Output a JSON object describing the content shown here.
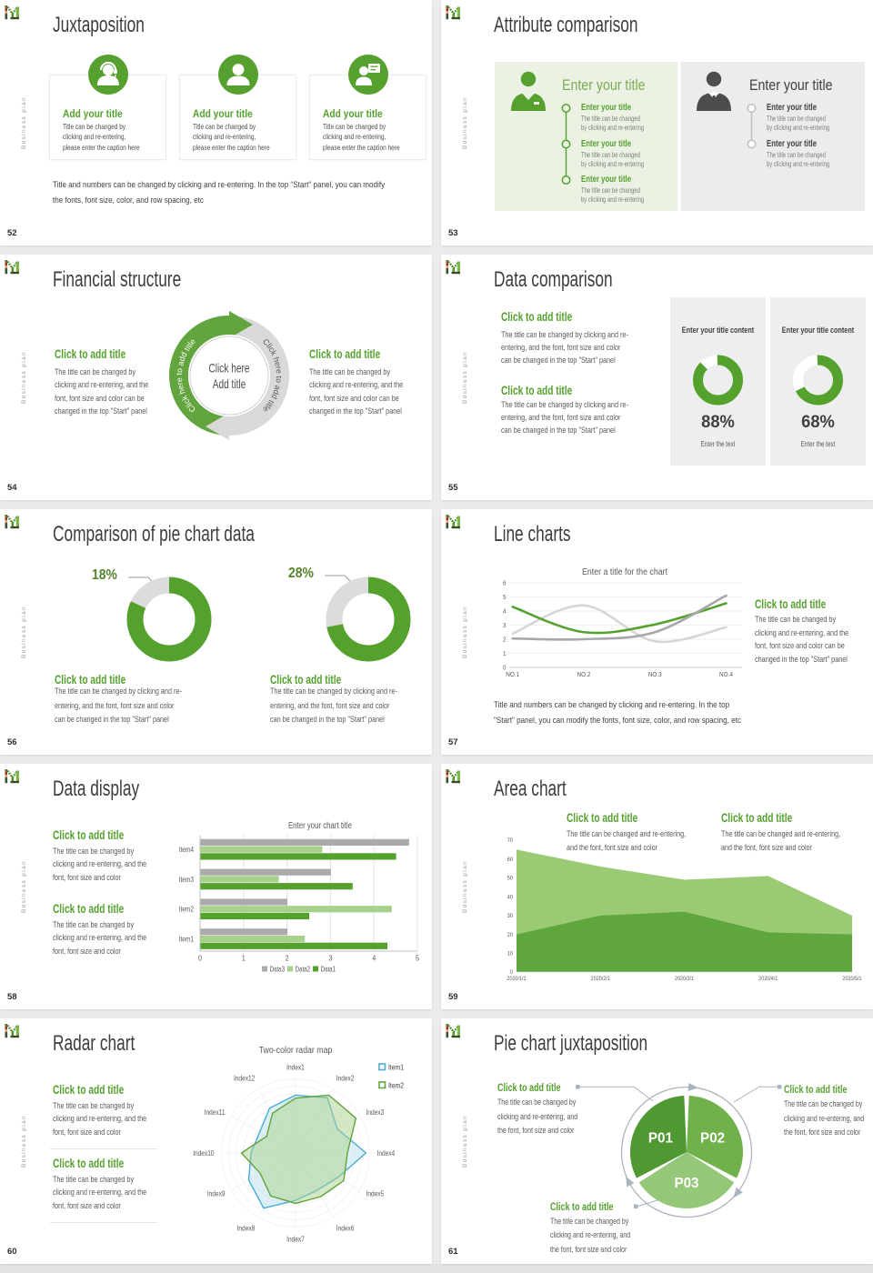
{
  "deck": {
    "vertical_label": "Business plan",
    "accent_green": "#55a02e",
    "logo_name": "brand-monogram"
  },
  "slides": {
    "s52": {
      "number": "52",
      "title": "Juxtaposition",
      "cards": [
        {
          "icon": "support-agent-icon",
          "heading": "Add your title",
          "body": [
            "Title can be changed by",
            "clicking and re-entering,",
            "please enter the caption here"
          ]
        },
        {
          "icon": "person-icon",
          "heading": "Add your title",
          "body": [
            "Title can be changed by",
            "clicking and re-entering,",
            "please enter the caption here"
          ]
        },
        {
          "icon": "presenter-icon",
          "heading": "Add your title",
          "body": [
            "Title can be changed by",
            "clicking and re-entering,",
            "please enter the caption here"
          ]
        }
      ],
      "caption": [
        "Title and numbers can be changed by clicking and re-entering. In the top \"Start\" panel, you can modify",
        "the fonts, font size, color, and row spacing, etc"
      ]
    },
    "s53": {
      "number": "53",
      "title": "Attribute comparison",
      "left_panel": {
        "icon": "green-person-icon",
        "big_title": "Enter your title",
        "items": [
          {
            "title": "Enter your title",
            "body": [
              "The title can be changed",
              "by clicking and re-entering"
            ]
          },
          {
            "title": "Enter your title",
            "body": [
              "The title can be changed",
              "by clicking and re-entering"
            ]
          },
          {
            "title": "Enter your title",
            "body": [
              "The title can be changed",
              "by clicking and re-entering"
            ]
          }
        ]
      },
      "right_panel": {
        "icon": "dark-person-icon",
        "big_title": "Enter your title",
        "items": [
          {
            "title": "Enter your title",
            "body": [
              "The title can be changed",
              "by clicking and re-entering"
            ]
          },
          {
            "title": "Enter your title",
            "body": [
              "The title can be changed",
              "by clicking and re-entering"
            ]
          }
        ]
      }
    },
    "s54": {
      "number": "54",
      "title": "Financial structure",
      "left_block": {
        "title": "Click to add title",
        "body": [
          "The title can be changed by",
          "clicking and re-entering, and the",
          "font, font size and color can be",
          "changed in the top \"Start\" panel"
        ]
      },
      "right_block": {
        "title": "Click to add title",
        "body": [
          "The title can be changed by",
          "clicking and re-entering, and the",
          "font, font size and color can be",
          "changed in the top \"Start\" panel"
        ]
      },
      "cycle": {
        "arc_label_left": "Click here to add title",
        "arc_label_right": "Click here to add title",
        "center_line1": "Click here",
        "center_line2": "Add title"
      }
    },
    "s55": {
      "number": "55",
      "title": "Data comparison",
      "blocks": [
        {
          "title": "Click to add title",
          "body": [
            "The title can be changed by clicking and re-",
            "entering, and the font, font size and color",
            "can be changed in the top \"Start\" panel"
          ]
        },
        {
          "title": "Click to add title",
          "body": [
            "The title can be changed by clicking and re-",
            "entering, and the font, font size and color",
            "can be changed in the top \"Start\" panel"
          ]
        }
      ]
    },
    "s56": {
      "number": "56",
      "title": "Comparison of pie chart data",
      "blocks": [
        {
          "title": "Click to add title",
          "body": [
            "The title can be changed by clicking and re-",
            "entering, and the font, font size and color",
            "can be changed in the top \"Start\" panel"
          ]
        },
        {
          "title": "Click to add title",
          "body": [
            "The title can be changed by clicking and re-",
            "entering, and the font, font size and color",
            "can be changed in the top \"Start\" panel"
          ]
        }
      ]
    },
    "s57": {
      "number": "57",
      "title": "Line charts",
      "right_block": {
        "title": "Click to add title",
        "body": [
          "The title can be changed by",
          "clicking and re-entering, and the",
          "font, font size and color can be",
          "changed in the top \"Start\" panel"
        ]
      },
      "caption": [
        "Title and numbers can be changed by clicking and re-entering. In the top",
        "\"Start\" panel, you can modify the fonts, font size, color, and row spacing, etc"
      ]
    },
    "s58": {
      "number": "58",
      "title": "Data display",
      "blocks": [
        {
          "title": "Click to add title",
          "body": [
            "The title can be changed by",
            "clicking and re-entering, and the",
            "font, font size and color"
          ]
        },
        {
          "title": "Click to add title",
          "body": [
            "The title can be changed by",
            "clicking and re-entering, and the",
            "font, font size and color"
          ]
        }
      ]
    },
    "s59": {
      "number": "59",
      "title": "Area chart",
      "blocks": [
        {
          "title": "Click to add title",
          "body": [
            "The title can be changed and re-entering,",
            "and the font, font size and color"
          ]
        },
        {
          "title": "Click to add title",
          "body": [
            "The title can be changed and re-entering,",
            "and the font, font size and color"
          ]
        }
      ]
    },
    "s60": {
      "number": "60",
      "title": "Radar chart",
      "blocks": [
        {
          "title": "Click to add title",
          "body": [
            "The title can be changed by",
            "clicking and re-entering, and the",
            "font, font size and color"
          ]
        },
        {
          "title": "Click to add title",
          "body": [
            "The title can be changed by",
            "clicking and re-entering, and the",
            "font, font size and color"
          ]
        }
      ]
    },
    "s61": {
      "number": "61",
      "title": "Pie chart juxtaposition",
      "blocks": [
        {
          "title": "Click to add title",
          "body": [
            "The title can be changed by",
            "clicking and re-entering, and",
            "the font, font size and color"
          ]
        },
        {
          "title": "Click to add title",
          "body": [
            "The title can be changed by",
            "clicking and re-entering, and",
            "the font, font size and color"
          ]
        },
        {
          "title": "Click to add title",
          "body": [
            "The title can be changed by",
            "clicking and re-entering, and",
            "the font, font size and color"
          ]
        }
      ]
    }
  },
  "chart_data": [
    {
      "slide": "55",
      "type": "donut",
      "items": [
        {
          "title": "Enter your title content",
          "percent": 88,
          "label": "88%",
          "caption": "Enter the text"
        },
        {
          "title": "Enter your title content",
          "percent": 68,
          "label": "68%",
          "caption": "Enter the text"
        }
      ],
      "value_color": "#55a12e",
      "track_color": "#ffffff"
    },
    {
      "slide": "56",
      "type": "donut",
      "items": [
        {
          "label": "18%",
          "gray_slice_percent": 18,
          "green_percent": 82
        },
        {
          "label": "28%",
          "gray_slice_percent": 28,
          "green_percent": 72
        }
      ],
      "value_color": "#55a12e",
      "track_color": "#dcdcdc"
    },
    {
      "slide": "57",
      "type": "line",
      "title": "Enter a title for the chart",
      "categories": [
        "NO.1",
        "NO.2",
        "NO.3",
        "NO.4"
      ],
      "ylim": [
        0,
        6
      ],
      "yticks": [
        0,
        1,
        2,
        3,
        4,
        5,
        6
      ],
      "grid": true,
      "series": [
        {
          "name": "series-light-gray",
          "color": "#d6d6d6",
          "values": [
            2.4,
            4.4,
            1.85,
            2.85
          ]
        },
        {
          "name": "series-green",
          "color": "#55a12e",
          "values": [
            4.3,
            2.5,
            3.05,
            4.55
          ]
        },
        {
          "name": "series-gray",
          "color": "#a8a8a8",
          "values": [
            2.05,
            2.0,
            2.5,
            5.1
          ]
        }
      ]
    },
    {
      "slide": "58",
      "type": "bar",
      "title": "Enter your chart title",
      "categories": [
        "Item1",
        "Item2",
        "Item3",
        "Item4"
      ],
      "xlim": [
        0,
        5
      ],
      "xticks": [
        0,
        1,
        2,
        3,
        4,
        5
      ],
      "grid": true,
      "legend_position": "bottom",
      "series": [
        {
          "name": "Data3",
          "color": "#ababab",
          "values": [
            2.0,
            2.0,
            3.0,
            4.8
          ]
        },
        {
          "name": "Data2",
          "color": "#a9d18e",
          "values": [
            2.4,
            4.4,
            1.8,
            2.8
          ]
        },
        {
          "name": "Data1",
          "color": "#55a12e",
          "values": [
            4.3,
            2.5,
            3.5,
            4.5
          ]
        }
      ]
    },
    {
      "slide": "59",
      "type": "area",
      "categories": [
        "2020/1/1",
        "2020/2/1",
        "2020/3/1",
        "2020/4/1",
        "2020/5/1"
      ],
      "ylim": [
        0,
        70
      ],
      "yticks": [
        0,
        10,
        20,
        30,
        40,
        50,
        60,
        70
      ],
      "series": [
        {
          "name": "area-light-green",
          "color": "#9bca75",
          "values": [
            65,
            56,
            49,
            51,
            30
          ]
        },
        {
          "name": "area-dark-green",
          "color": "#5fa63c",
          "values": [
            20,
            30,
            32,
            21,
            20
          ]
        }
      ]
    },
    {
      "slide": "60",
      "type": "radar",
      "title": "Two-color radar map",
      "axes": [
        "Index1",
        "Index2",
        "Index3",
        "Index4",
        "Index5",
        "Index6",
        "Index7",
        "Index8",
        "Index9",
        "Index10",
        "Index11",
        "Index12"
      ],
      "max": 1,
      "legend_position": "top-right",
      "series": [
        {
          "name": "Item1",
          "color": "#4bacd6",
          "fill": "rgba(182,221,238,0.45)",
          "values": [
            0.78,
            0.86,
            0.65,
            0.95,
            0.66,
            0.58,
            0.64,
            0.86,
            0.73,
            0.6,
            0.56,
            0.7
          ]
        },
        {
          "name": "Item2",
          "color": "#61a33c",
          "fill": "rgba(169,209,142,0.50)",
          "values": [
            0.74,
            0.9,
            0.94,
            0.7,
            0.75,
            0.68,
            0.68,
            0.67,
            0.55,
            0.73,
            0.45,
            0.62
          ]
        }
      ]
    },
    {
      "slide": "61",
      "type": "pie",
      "slices": [
        {
          "label": "P01",
          "color": "#4f9832",
          "value": 33.3
        },
        {
          "label": "P02",
          "color": "#70b14b",
          "value": 33.3
        },
        {
          "label": "P03",
          "color": "#95c779",
          "value": 33.3
        }
      ]
    }
  ]
}
